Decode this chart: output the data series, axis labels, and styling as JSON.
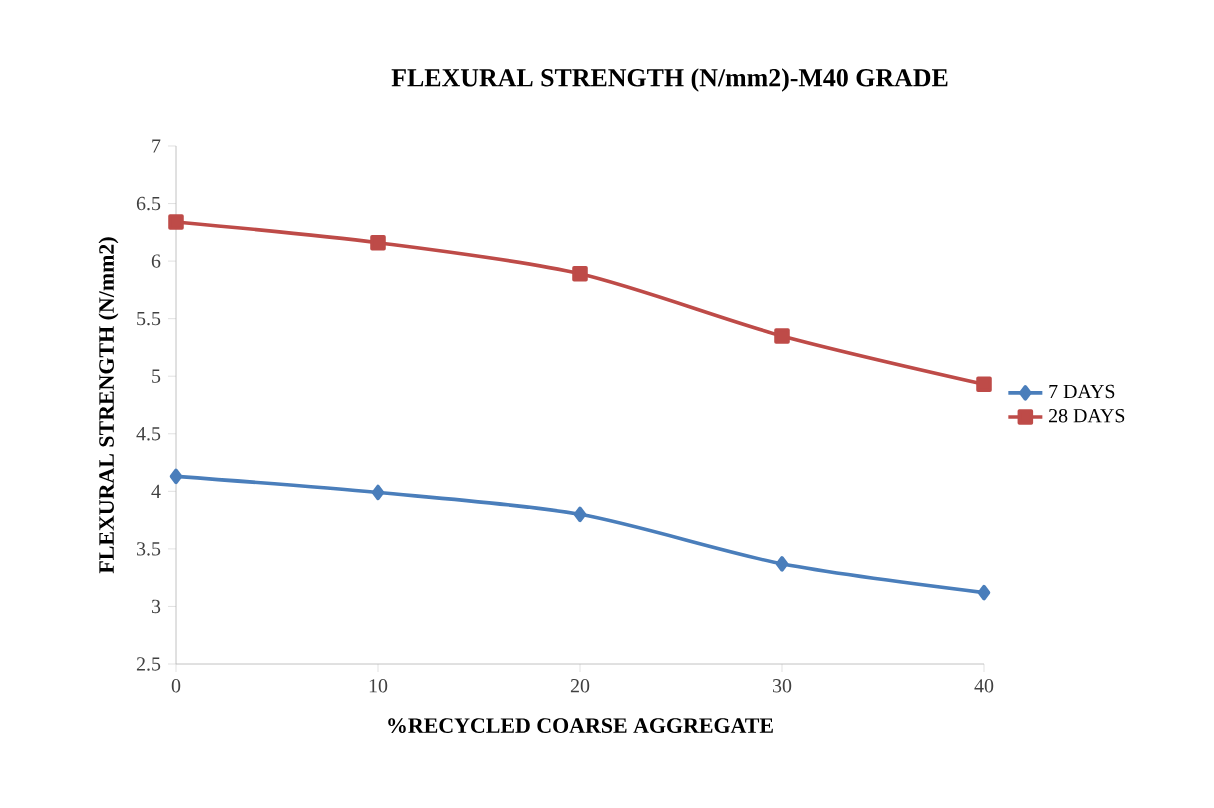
{
  "chart_data": {
    "type": "line",
    "title": "FLEXURAL STRENGTH  (N/mm2)-M40 GRADE",
    "xlabel": "%RECYCLED COARSE AGGREGATE",
    "ylabel": "FLEXURAL STRENGTH  (N/mm2)",
    "categories": [
      "0",
      "10",
      "20",
      "30",
      "40"
    ],
    "series": [
      {
        "name": "7 DAYS",
        "color": "#4a7ebb",
        "marker": "diamond",
        "values": [
          4.13,
          3.99,
          3.8,
          3.37,
          3.12
        ]
      },
      {
        "name": "28 DAYS",
        "color": "#be4b48",
        "marker": "square",
        "values": [
          6.34,
          6.16,
          5.89,
          5.35,
          4.93
        ]
      }
    ],
    "ylim": [
      2.5,
      7
    ],
    "yticks": [
      2.5,
      3,
      3.5,
      4,
      4.5,
      5,
      5.5,
      6,
      6.5,
      7
    ],
    "grid": false,
    "legend": "right",
    "line_style": "solid"
  }
}
